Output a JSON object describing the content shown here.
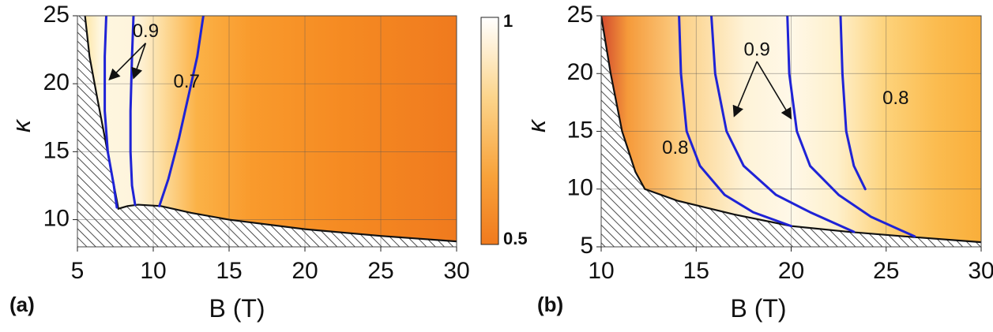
{
  "chart_data": [
    {
      "type": "heatmap",
      "panel_label": "(a)",
      "xlabel": "B (T)",
      "ylabel": "κ",
      "xlim": [
        5,
        30
      ],
      "ylim": [
        8,
        25
      ],
      "xticks": [
        "5",
        "10",
        "15",
        "20",
        "25",
        "30"
      ],
      "yticks": [
        "10",
        "15",
        "20",
        "25"
      ],
      "grid": true,
      "boundary": [
        [
          5.5,
          25
        ],
        [
          5.8,
          22
        ],
        [
          6.3,
          19
        ],
        [
          6.9,
          15.5
        ],
        [
          7.5,
          12
        ],
        [
          7.7,
          10.8
        ],
        [
          8.3,
          11.0
        ],
        [
          9.0,
          11.1
        ],
        [
          10.5,
          11.0
        ],
        [
          12.5,
          10.5
        ],
        [
          15,
          10.0
        ],
        [
          20,
          9.3
        ],
        [
          25,
          8.8
        ],
        [
          30,
          8.4
        ]
      ],
      "contours": [
        {
          "level": "0.9",
          "points": [
            [
              6.9,
              25
            ],
            [
              6.8,
              22
            ],
            [
              6.8,
              18
            ],
            [
              7.0,
              15
            ],
            [
              7.4,
              12.5
            ],
            [
              7.6,
              10.9
            ]
          ]
        },
        {
          "level": "0.9",
          "points": [
            [
              8.7,
              25
            ],
            [
              8.6,
              22
            ],
            [
              8.5,
              18
            ],
            [
              8.5,
              15
            ],
            [
              8.6,
              12.5
            ],
            [
              8.8,
              11.1
            ]
          ]
        },
        {
          "level": "0.7",
          "points": [
            [
              13.3,
              25
            ],
            [
              12.9,
              22
            ],
            [
              12.3,
              19
            ],
            [
              11.7,
              16
            ],
            [
              11.0,
              13
            ],
            [
              10.4,
              11.0
            ]
          ]
        }
      ],
      "annotations": [
        {
          "text": "0.9",
          "x": 9.5,
          "y": 23.8,
          "arrows_to": [
            [
              7.1,
              20.3
            ],
            [
              8.7,
              20.4
            ]
          ]
        },
        {
          "text": "0.7",
          "x": 12.2,
          "y": 20.1,
          "arrows_to": []
        }
      ],
      "colorbar": {
        "min_label": "0.5",
        "max_label": "1",
        "min": 0.5,
        "max": 1
      }
    },
    {
      "type": "heatmap",
      "panel_label": "(b)",
      "xlabel": "B (T)",
      "ylabel": "κ",
      "xlim": [
        10,
        30
      ],
      "ylim": [
        5,
        25
      ],
      "xticks": [
        "10",
        "15",
        "20",
        "25",
        "30"
      ],
      "yticks": [
        "5",
        "10",
        "15",
        "20",
        "25"
      ],
      "grid": true,
      "boundary": [
        [
          10,
          25
        ],
        [
          10.5,
          20
        ],
        [
          11.1,
          15
        ],
        [
          11.8,
          11.5
        ],
        [
          12.3,
          10.0
        ],
        [
          14,
          9.0
        ],
        [
          17,
          7.8
        ],
        [
          20,
          6.8
        ],
        [
          23,
          6.3
        ],
        [
          26,
          5.9
        ],
        [
          30,
          5.4
        ]
      ],
      "contours": [
        {
          "level": "0.8",
          "points": [
            [
              14.1,
              25
            ],
            [
              14.2,
              20
            ],
            [
              14.5,
              15
            ],
            [
              15.2,
              12
            ],
            [
              16.5,
              9.5
            ],
            [
              18.0,
              8.0
            ],
            [
              20.0,
              6.8
            ]
          ]
        },
        {
          "level": "0.9",
          "points": [
            [
              15.8,
              25
            ],
            [
              16.0,
              20
            ],
            [
              16.6,
              15
            ],
            [
              17.5,
              12
            ],
            [
              19.2,
              9.5
            ],
            [
              21.0,
              8.0
            ],
            [
              23.3,
              6.3
            ]
          ]
        },
        {
          "level": "0.9",
          "points": [
            [
              19.8,
              25
            ],
            [
              19.9,
              20
            ],
            [
              20.3,
              15
            ],
            [
              21.0,
              12
            ],
            [
              22.5,
              9.5
            ],
            [
              24.2,
              7.6
            ],
            [
              26.5,
              5.9
            ]
          ]
        },
        {
          "level": "0.8",
          "points": [
            [
              22.6,
              25
            ],
            [
              22.7,
              20
            ],
            [
              22.9,
              15
            ],
            [
              23.3,
              12
            ],
            [
              23.9,
              10.0
            ]
          ]
        }
      ],
      "annotations": [
        {
          "text": "0.9",
          "x": 18.2,
          "y": 22.0,
          "arrows_to": [
            [
              17.0,
              16.3
            ],
            [
              20.0,
              16.1
            ]
          ]
        },
        {
          "text": "0.8",
          "x": 13.9,
          "y": 13.5,
          "arrows_to": []
        },
        {
          "text": "0.8",
          "x": 25.5,
          "y": 17.8,
          "arrows_to": []
        }
      ]
    }
  ]
}
